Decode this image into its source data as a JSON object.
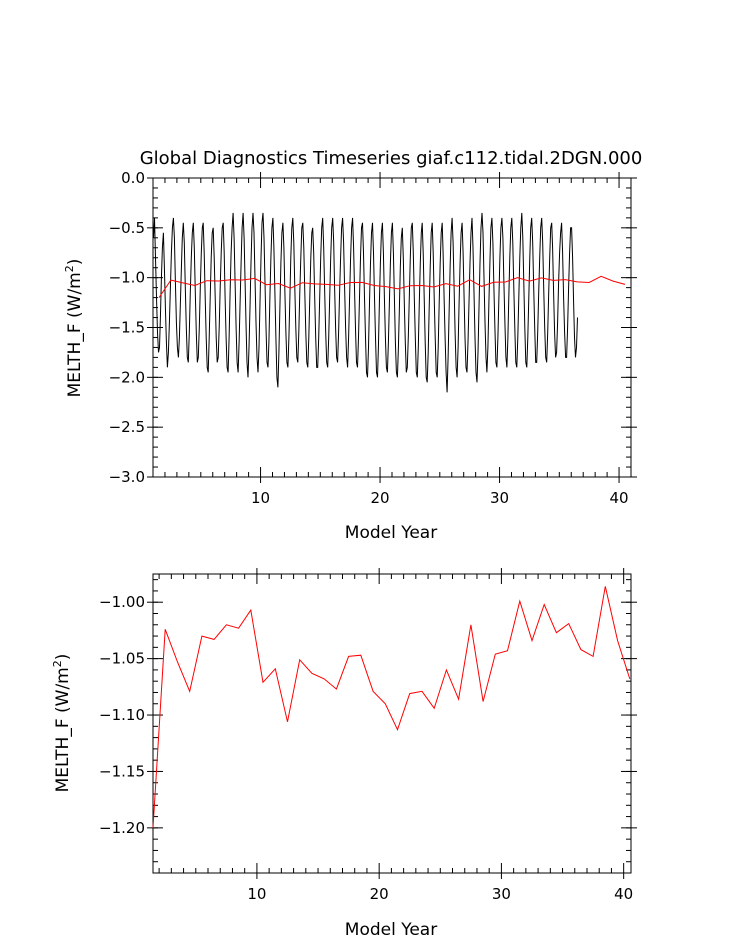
{
  "chart_data": [
    {
      "type": "line",
      "title": "Global Diagnostics Timeseries giaf.c112.tidal.2DGN.000",
      "xlabel": "Model Year",
      "ylabel_main": "MELTH_F (W/m",
      "ylabel_sup": "2",
      "ylabel_close": ")",
      "xlim": [
        1,
        41
      ],
      "ylim": [
        -3.0,
        0.0
      ],
      "x_ticks": [
        "10",
        "20",
        "30",
        "40"
      ],
      "y_ticks": [
        "0.0",
        "−0.5",
        "−1.0",
        "−1.5",
        "−2.0",
        "−2.5",
        "−3.0"
      ],
      "grid": false,
      "series": [
        {
          "kind": "monthly",
          "color": "#000000",
          "x_start": 1.04,
          "x_step": 0.0833,
          "values": [
            -0.6,
            -0.4,
            -0.8,
            -1.2,
            -1.55,
            -1.75,
            -1.7,
            -1.4,
            -1.0,
            -0.7,
            -0.55,
            -0.9,
            -1.3,
            -1.65,
            -1.9,
            -1.75,
            -1.45,
            -1.1,
            -0.75,
            -0.5,
            -0.4,
            -0.6,
            -1.05,
            -1.45,
            -1.7,
            -1.8,
            -1.6,
            -1.25,
            -0.9,
            -0.6,
            -0.45,
            -0.65,
            -1.1,
            -1.5,
            -1.8,
            -1.85,
            -1.55,
            -1.15,
            -0.8,
            -0.55,
            -0.45,
            -0.7,
            -1.15,
            -1.55,
            -1.85,
            -1.8,
            -1.5,
            -1.1,
            -0.75,
            -0.5,
            -0.45,
            -0.75,
            -1.2,
            -1.6,
            -1.9,
            -1.95,
            -1.6,
            -1.2,
            -0.8,
            -0.55,
            -0.5,
            -0.8,
            -1.2,
            -1.6,
            -1.85,
            -1.8,
            -1.5,
            -1.1,
            -0.75,
            -0.5,
            -0.45,
            -0.75,
            -1.2,
            -1.6,
            -1.9,
            -1.95,
            -1.6,
            -1.15,
            -0.75,
            -0.5,
            -0.35,
            -0.6,
            -1.05,
            -1.5,
            -1.85,
            -1.95,
            -1.65,
            -1.25,
            -0.85,
            -0.5,
            -0.35,
            -0.6,
            -1.05,
            -1.5,
            -1.85,
            -2.0,
            -1.7,
            -1.3,
            -0.85,
            -0.5,
            -0.35,
            -0.55,
            -1.0,
            -1.45,
            -1.8,
            -1.95,
            -1.7,
            -1.25,
            -0.8,
            -0.45,
            -0.35,
            -0.6,
            -1.05,
            -1.5,
            -1.85,
            -1.9,
            -1.65,
            -1.2,
            -0.8,
            -0.5,
            -0.4,
            -0.7,
            -1.15,
            -1.6,
            -2.0,
            -2.1,
            -1.75,
            -1.3,
            -0.85,
            -0.55,
            -0.45,
            -0.7,
            -1.15,
            -1.55,
            -1.85,
            -1.9,
            -1.6,
            -1.2,
            -0.8,
            -0.5,
            -0.4,
            -0.65,
            -1.1,
            -1.5,
            -1.8,
            -1.85,
            -1.55,
            -1.15,
            -0.8,
            -0.5,
            -0.45,
            -0.7,
            -1.15,
            -1.55,
            -1.85,
            -1.9,
            -1.6,
            -1.2,
            -0.8,
            -0.55,
            -0.5,
            -0.75,
            -1.2,
            -1.6,
            -1.9,
            -1.9,
            -1.6,
            -1.2,
            -0.8,
            -0.5,
            -0.4,
            -0.7,
            -1.15,
            -1.55,
            -1.85,
            -1.9,
            -1.6,
            -1.2,
            -0.8,
            -0.5,
            -0.4,
            -0.65,
            -1.1,
            -1.5,
            -1.8,
            -1.85,
            -1.55,
            -1.15,
            -0.8,
            -0.5,
            -0.4,
            -0.65,
            -1.1,
            -1.5,
            -1.8,
            -1.9,
            -1.6,
            -1.2,
            -0.8,
            -0.5,
            -0.4,
            -0.7,
            -1.15,
            -1.55,
            -1.85,
            -1.9,
            -1.6,
            -1.2,
            -0.8,
            -0.5,
            -0.45,
            -0.75,
            -1.2,
            -1.6,
            -1.95,
            -2.0,
            -1.7,
            -1.25,
            -0.85,
            -0.55,
            -0.45,
            -0.75,
            -1.2,
            -1.6,
            -1.95,
            -2.0,
            -1.7,
            -1.25,
            -0.85,
            -0.55,
            -0.45,
            -0.75,
            -1.2,
            -1.6,
            -1.9,
            -1.95,
            -1.65,
            -1.25,
            -0.85,
            -0.55,
            -0.45,
            -0.75,
            -1.2,
            -1.65,
            -1.95,
            -2.0,
            -1.7,
            -1.3,
            -0.9,
            -0.6,
            -0.5,
            -0.8,
            -1.25,
            -1.65,
            -1.95,
            -1.9,
            -1.6,
            -1.2,
            -0.8,
            -0.5,
            -0.45,
            -0.75,
            -1.2,
            -1.6,
            -1.95,
            -2.0,
            -1.7,
            -1.25,
            -0.85,
            -0.55,
            -0.45,
            -0.75,
            -1.2,
            -1.65,
            -2.0,
            -2.05,
            -1.75,
            -1.3,
            -0.9,
            -0.55,
            -0.45,
            -0.75,
            -1.2,
            -1.6,
            -1.95,
            -2.0,
            -1.7,
            -1.25,
            -0.85,
            -0.55,
            -0.45,
            -0.75,
            -1.2,
            -1.6,
            -1.95,
            -2.15,
            -1.8,
            -1.35,
            -0.9,
            -0.55,
            -0.4,
            -0.65,
            -1.1,
            -1.55,
            -1.9,
            -2.0,
            -1.7,
            -1.25,
            -0.85,
            -0.55,
            -0.45,
            -0.75,
            -1.2,
            -1.6,
            -1.9,
            -1.95,
            -1.65,
            -1.25,
            -0.85,
            -0.55,
            -0.4,
            -0.7,
            -1.15,
            -1.6,
            -1.95,
            -2.05,
            -1.75,
            -1.3,
            -0.85,
            -0.5,
            -0.35,
            -0.55,
            -1.0,
            -1.45,
            -1.8,
            -1.95,
            -1.7,
            -1.25,
            -0.85,
            -0.5,
            -0.4,
            -0.65,
            -1.1,
            -1.5,
            -1.85,
            -1.9,
            -1.6,
            -1.2,
            -0.8,
            -0.5,
            -0.4,
            -0.6,
            -1.05,
            -1.45,
            -1.8,
            -1.9,
            -1.6,
            -1.2,
            -0.8,
            -0.5,
            -0.4,
            -0.65,
            -1.1,
            -1.5,
            -1.85,
            -1.9,
            -1.6,
            -1.2,
            -0.8,
            -0.5,
            -0.35,
            -0.6,
            -1.05,
            -1.5,
            -1.85,
            -1.9,
            -1.6,
            -1.2,
            -0.8,
            -0.5,
            -0.4,
            -0.65,
            -1.1,
            -1.5,
            -1.85,
            -1.85,
            -1.55,
            -1.15,
            -0.8,
            -0.5,
            -0.4,
            -0.65,
            -1.1,
            -1.5,
            -1.8,
            -1.85,
            -1.55,
            -1.15,
            -0.8,
            -0.5,
            -0.45,
            -0.7,
            -1.15,
            -1.55,
            -1.8,
            -1.75,
            -1.45,
            -1.05,
            -0.75,
            -0.55,
            -0.45,
            -0.75,
            -1.2,
            -1.55,
            -1.8,
            -1.8,
            -1.5,
            -1.1,
            -0.75,
            -0.5,
            -0.5,
            -0.8,
            -1.25,
            -1.6,
            -1.8,
            -1.7,
            -1.4
          ]
        },
        {
          "kind": "annual",
          "color": "#ff0000",
          "x": [
            1.5,
            2.5,
            3.5,
            4.5,
            5.5,
            6.5,
            7.5,
            8.5,
            9.5,
            10.5,
            11.5,
            12.5,
            13.5,
            14.5,
            15.5,
            16.5,
            17.5,
            18.5,
            19.5,
            20.5,
            21.5,
            22.5,
            23.5,
            24.5,
            25.5,
            26.5,
            27.5,
            28.5,
            29.5,
            30.5,
            31.5,
            32.5,
            33.5,
            34.5,
            35.5,
            36.5,
            37.5,
            38.5,
            39.5,
            40.5
          ],
          "values": [
            -1.2,
            -1.024,
            -1.053,
            -1.079,
            -1.03,
            -1.033,
            -1.02,
            -1.023,
            -1.007,
            -1.071,
            -1.059,
            -1.106,
            -1.051,
            -1.063,
            -1.068,
            -1.077,
            -1.048,
            -1.047,
            -1.079,
            -1.09,
            -1.113,
            -1.081,
            -1.079,
            -1.094,
            -1.06,
            -1.086,
            -1.02,
            -1.088,
            -1.046,
            -1.043,
            -0.999,
            -1.034,
            -1.002,
            -1.027,
            -1.019,
            -1.042,
            -1.048,
            -0.986,
            -1.034,
            -1.068
          ]
        }
      ]
    },
    {
      "type": "line",
      "xlabel": "Model Year",
      "ylabel_main": "MELTH_F (W/m",
      "ylabel_sup": "2",
      "ylabel_close": ")",
      "xlim": [
        1.5,
        40.6
      ],
      "ylim": [
        -1.24,
        -0.975
      ],
      "x_ticks": [
        "10",
        "20",
        "30",
        "40"
      ],
      "y_ticks": [
        "−1.00",
        "−1.05",
        "−1.10",
        "−1.15",
        "−1.20"
      ],
      "grid": false,
      "series": [
        {
          "kind": "annual",
          "color": "#ff0000",
          "x": [
            1.5,
            2.5,
            3.5,
            4.5,
            5.5,
            6.5,
            7.5,
            8.5,
            9.5,
            10.5,
            11.5,
            12.5,
            13.5,
            14.5,
            15.5,
            16.5,
            17.5,
            18.5,
            19.5,
            20.5,
            21.5,
            22.5,
            23.5,
            24.5,
            25.5,
            26.5,
            27.5,
            28.5,
            29.5,
            30.5,
            31.5,
            32.5,
            33.5,
            34.5,
            35.5,
            36.5,
            37.5,
            38.5,
            39.5,
            40.5
          ],
          "values": [
            -1.2,
            -1.024,
            -1.053,
            -1.079,
            -1.03,
            -1.033,
            -1.02,
            -1.023,
            -1.007,
            -1.071,
            -1.059,
            -1.106,
            -1.051,
            -1.063,
            -1.068,
            -1.077,
            -1.048,
            -1.047,
            -1.079,
            -1.09,
            -1.113,
            -1.081,
            -1.079,
            -1.094,
            -1.06,
            -1.086,
            -1.02,
            -1.088,
            -1.046,
            -1.043,
            -0.999,
            -1.034,
            -1.002,
            -1.027,
            -1.019,
            -1.042,
            -1.048,
            -0.986,
            -1.034,
            -1.068
          ]
        }
      ]
    }
  ]
}
